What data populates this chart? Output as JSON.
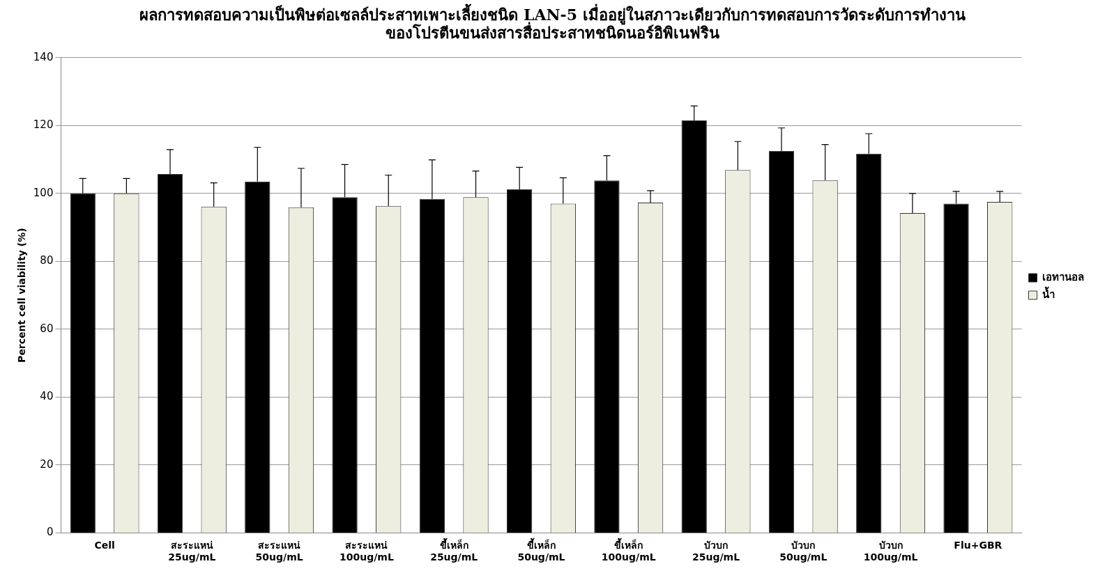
{
  "chart_data": {
    "type": "bar",
    "title": "ผลการทดสอบความเป็นพิษต่อเซลล์ประสาทเพาะเลี้ยงชนิด LAN-5 เมื่ออยู่ในสภาวะเดียวกับการทดสอบการวัดระดับการทำงาน\nของโปรตีนขนส่งสารสื่อประสาทชนิดนอร์อิพิเนฟริน",
    "ylabel": "Percent cell viability (%)",
    "categories": [
      "Cell",
      "สะระแหน่\n25ug/mL",
      "สะระแหน่\n50ug/mL",
      "สะระแหน่\n100ug/mL",
      "ขี้เหล็ก\n25ug/mL",
      "ขี้เหล็ก\n50ug/mL",
      "ขี้เหล็ก\n100ug/mL",
      "บัวบก\n25ug/mL",
      "บัวบก\n50ug/mL",
      "บัวบก\n100ug/mL",
      "Flu+GBR"
    ],
    "series": [
      {
        "name": "เอทานอล",
        "color": "#000000",
        "values": [
          100,
          105.7,
          103.5,
          98.9,
          98.4,
          101.2,
          103.8,
          121.5,
          112.5,
          111.7,
          97.0
        ],
        "errors": [
          [
            100,
            104.4
          ],
          [
            105.7,
            112.9
          ],
          [
            103.5,
            113.6
          ],
          [
            98.9,
            108.5
          ],
          [
            98.4,
            109.9
          ],
          [
            101.2,
            107.7
          ],
          [
            103.8,
            111.1
          ],
          [
            121.5,
            125.8
          ],
          [
            112.5,
            119.3
          ],
          [
            111.7,
            117.6
          ],
          [
            97.0,
            100.6
          ]
        ]
      },
      {
        "name": "น้ำ",
        "color": "#eeeee0",
        "values": [
          100,
          96.1,
          95.9,
          96.3,
          98.9,
          97.0,
          97.3,
          106.9,
          103.9,
          94.2,
          97.5
        ],
        "errors": [
          [
            100,
            104.4
          ],
          [
            96.1,
            103.1
          ],
          [
            95.9,
            107.4
          ],
          [
            96.3,
            105.4
          ],
          [
            98.9,
            106.6
          ],
          [
            97.0,
            104.6
          ],
          [
            97.3,
            100.8
          ],
          [
            106.9,
            115.3
          ],
          [
            103.9,
            114.4
          ],
          [
            94.2,
            100.0
          ],
          [
            97.5,
            100.6
          ]
        ]
      }
    ],
    "ylim": [
      0,
      140
    ],
    "yticks": [
      0,
      20,
      40,
      60,
      80,
      100,
      120,
      140
    ],
    "grid": "y",
    "legend": "right"
  }
}
